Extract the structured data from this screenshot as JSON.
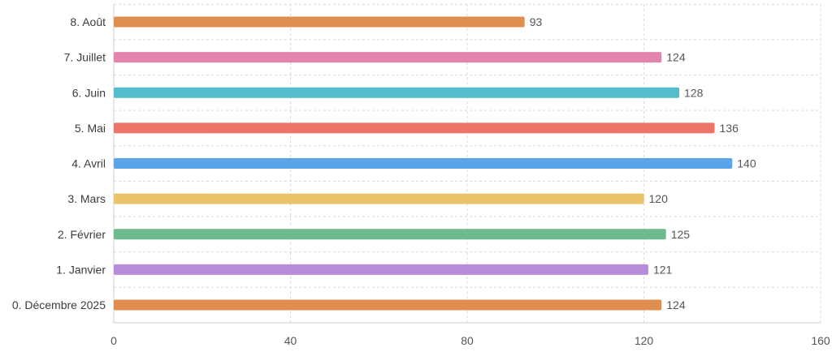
{
  "chart_data": {
    "type": "bar",
    "orientation": "horizontal",
    "categories": [
      "0. Décembre 2025",
      "1. Janvier",
      "2. Février",
      "3. Mars",
      "4. Avril",
      "5. Mai",
      "6. Juin",
      "7. Juillet",
      "8. Août"
    ],
    "values": [
      124,
      121,
      125,
      120,
      140,
      136,
      128,
      124,
      93
    ],
    "colors": [
      "#e08e4f",
      "#b98cdb",
      "#6dba8c",
      "#e9c46a",
      "#5ba3ea",
      "#ec7468",
      "#54bccb",
      "#e384ad",
      "#e08e4f"
    ],
    "xlim": [
      0,
      160
    ],
    "xticks": [
      0,
      40,
      80,
      120,
      160
    ],
    "grid": true,
    "data_labels": true
  }
}
